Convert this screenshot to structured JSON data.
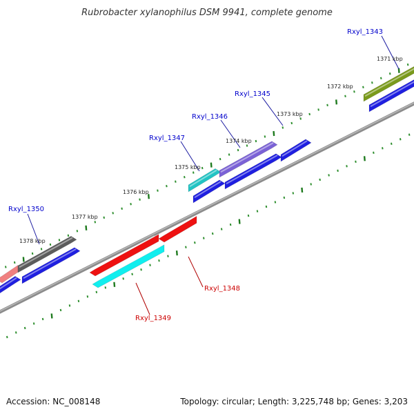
{
  "title": "Rubrobacter xylanophilus DSM 9941, complete genome",
  "footer": {
    "accession": "Accession: NC_008148",
    "topology": "Topology: circular; Length: 3,225,748 bp; Genes: 3,203"
  },
  "colors": {
    "backbone": "#8c8c8c",
    "tick_major": "#1e7a1e",
    "tick_minor": "#2f8f2f",
    "label_forward": "#0000cc",
    "label_reverse": "#cc0000",
    "leader": "#1a1aa0",
    "leader_reverse": "#b00000"
  },
  "ticks": [
    {
      "label": "1371 kbp"
    },
    {
      "label": "1372 kbp"
    },
    {
      "label": "1373 kbp"
    },
    {
      "label": "1374 kbp"
    },
    {
      "label": "1375 kbp"
    },
    {
      "label": "1376 kbp"
    },
    {
      "label": "1377 kbp"
    },
    {
      "label": "1378 kbp"
    }
  ],
  "genes": [
    {
      "name": "Rxyl_1343",
      "strand": "forward",
      "color": "#7a9a1c"
    },
    {
      "name": "Rxyl_1345",
      "strand": "forward",
      "color": "#1f1fe0"
    },
    {
      "name": "Rxyl_1346",
      "strand": "forward",
      "color": "#7b62d6"
    },
    {
      "name": "Rxyl_1347",
      "strand": "forward",
      "color": "#22c4c4"
    },
    {
      "name": "Rxyl_1348",
      "strand": "reverse",
      "color": "#ee1111"
    },
    {
      "name": "Rxyl_1349",
      "strand": "reverse",
      "color": "#11eeee"
    },
    {
      "name": "Rxyl_1350",
      "strand": "forward",
      "color": "#5c5c5c"
    }
  ]
}
